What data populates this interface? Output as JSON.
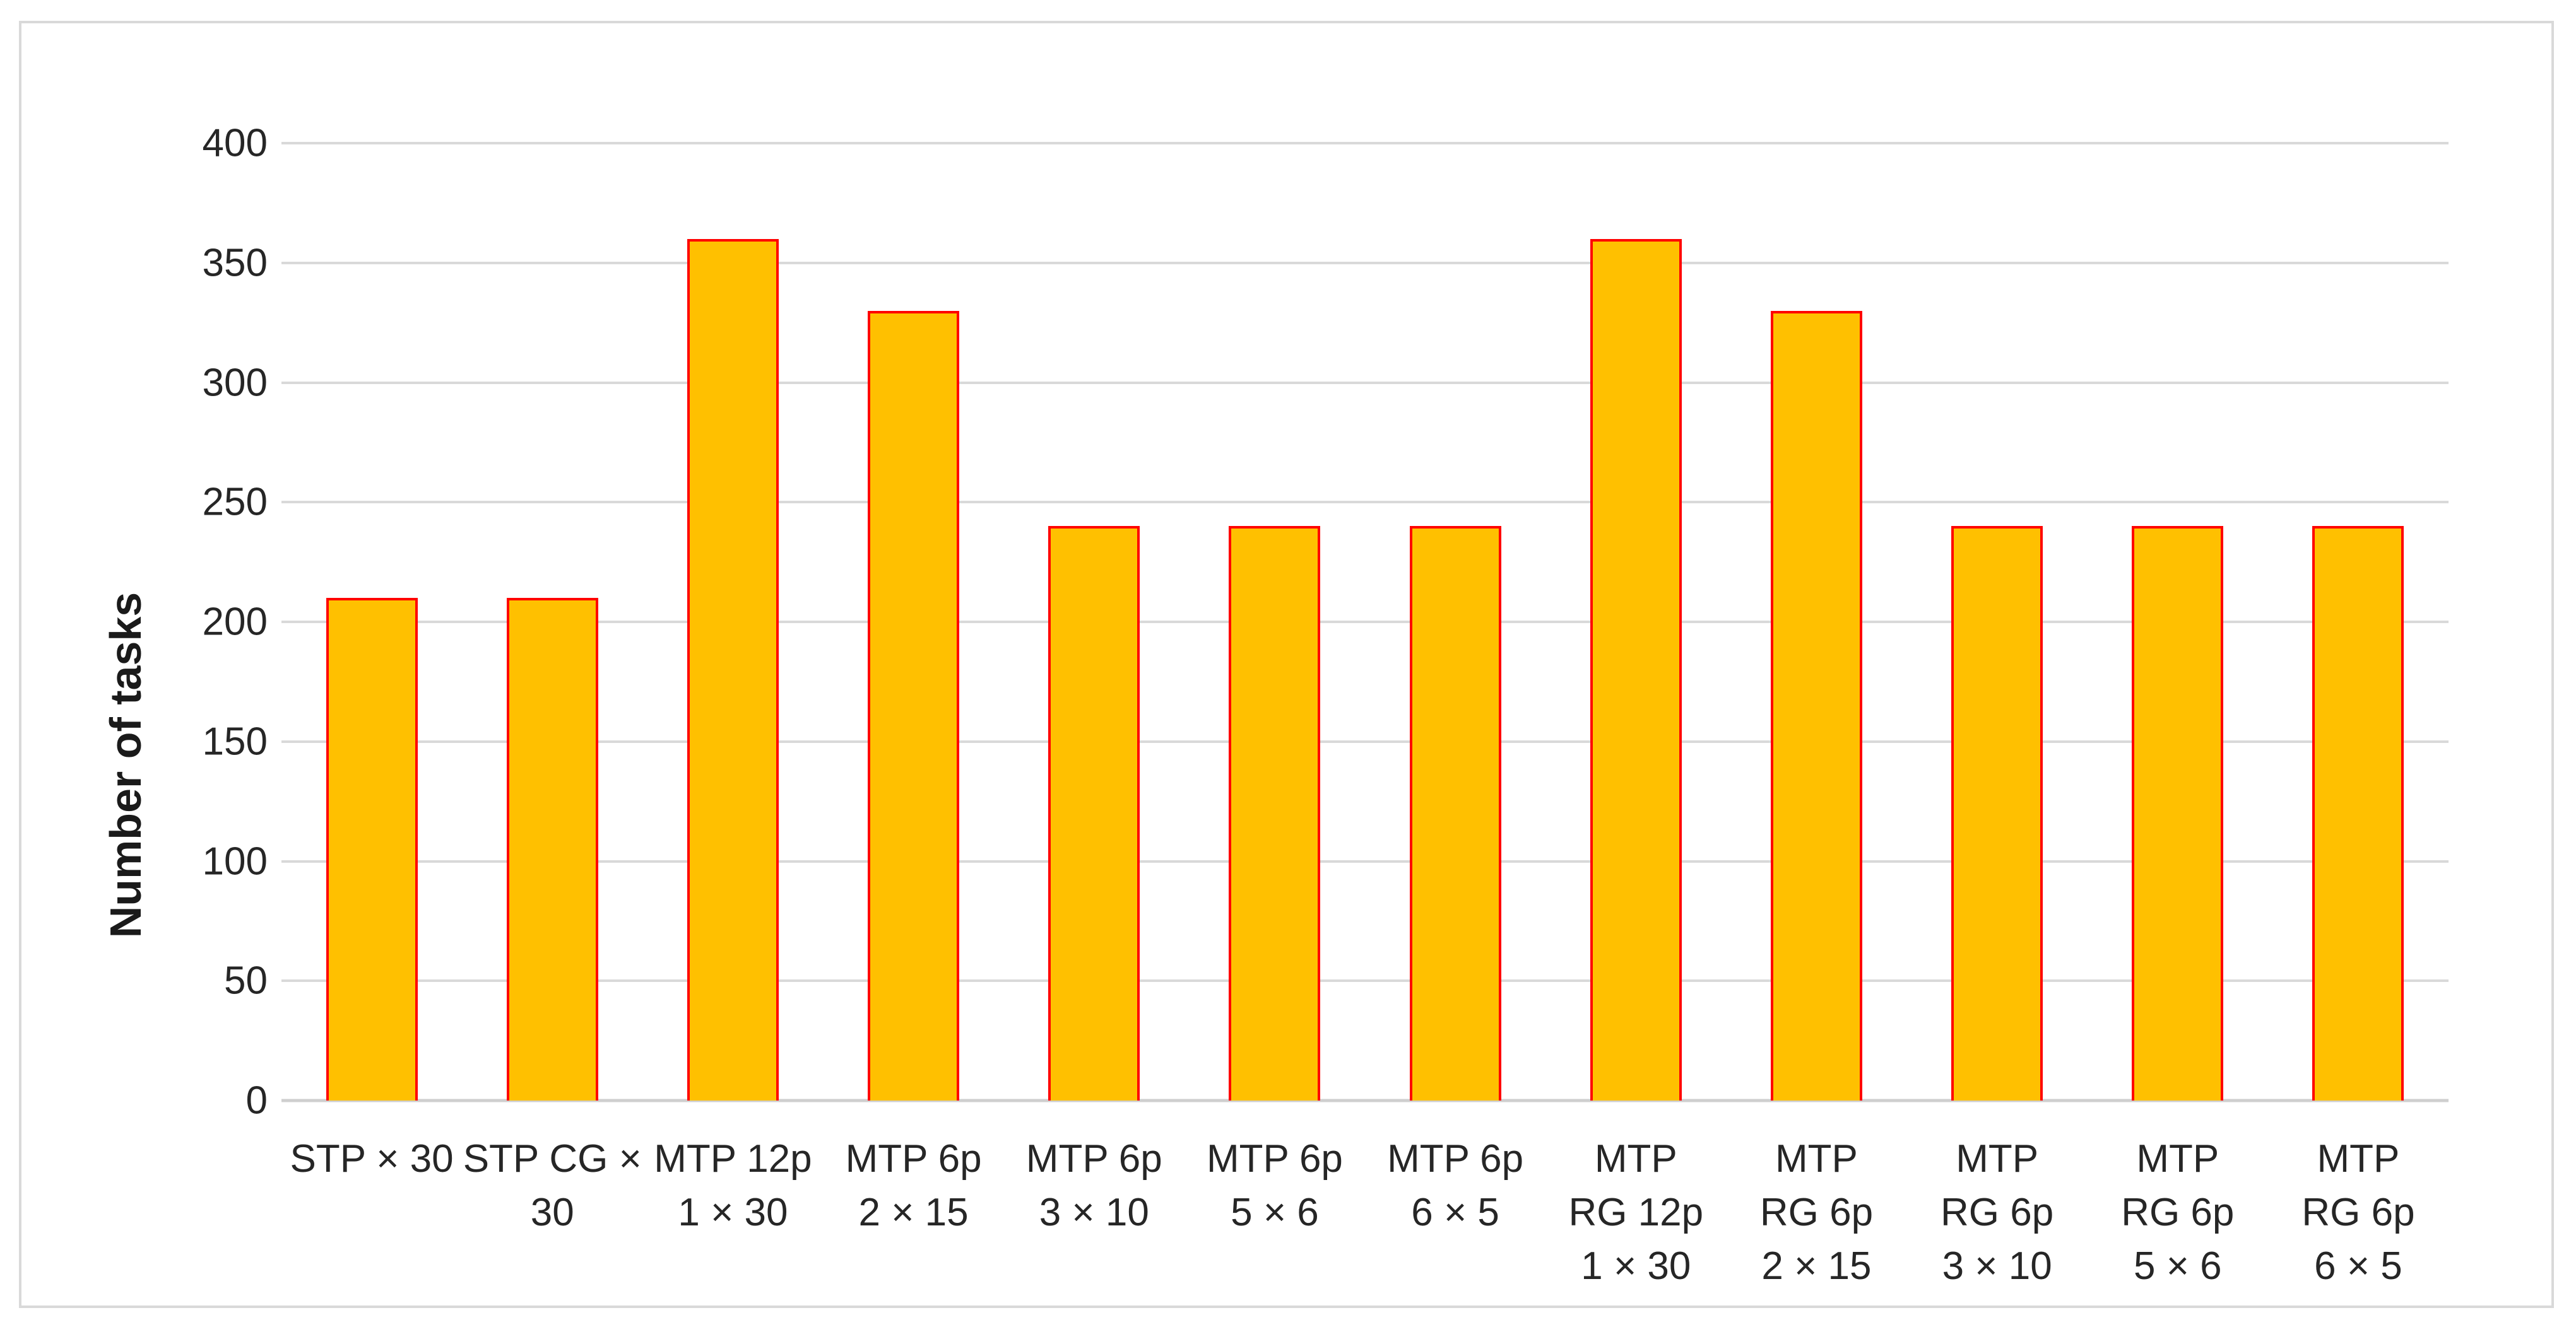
{
  "chart_data": {
    "type": "bar",
    "title": "",
    "xlabel": "",
    "ylabel": "Number of tasks",
    "categories": [
      "STP × 30",
      "STP CG ×\n30",
      "MTP 12p\n1 × 30",
      "MTP 6p\n2 × 15",
      "MTP 6p\n3 × 10",
      "MTP 6p\n5 × 6",
      "MTP 6p\n6 × 5",
      "MTP\nRG 12p\n1 × 30",
      "MTP\nRG 6p\n2 × 15",
      "MTP\nRG 6p\n3 × 10",
      "MTP\nRG 6p\n5 × 6",
      "MTP\nRG 6p\n6 × 5"
    ],
    "values": [
      210,
      210,
      360,
      330,
      240,
      240,
      240,
      360,
      330,
      240,
      240,
      240
    ],
    "ylim": [
      0,
      400
    ],
    "y_ticks": [
      0,
      50,
      100,
      150,
      200,
      250,
      300,
      350,
      400
    ],
    "grid": "horizontal",
    "legend": "none",
    "colors": {
      "bar_fill": "#FFC000",
      "bar_border": "#FF0000",
      "gridline": "#D9D9D9",
      "axis_line": "#CFCFCF",
      "text": "#262626",
      "frame_border": "#D9D9D9",
      "background": "#FFFFFF"
    }
  }
}
